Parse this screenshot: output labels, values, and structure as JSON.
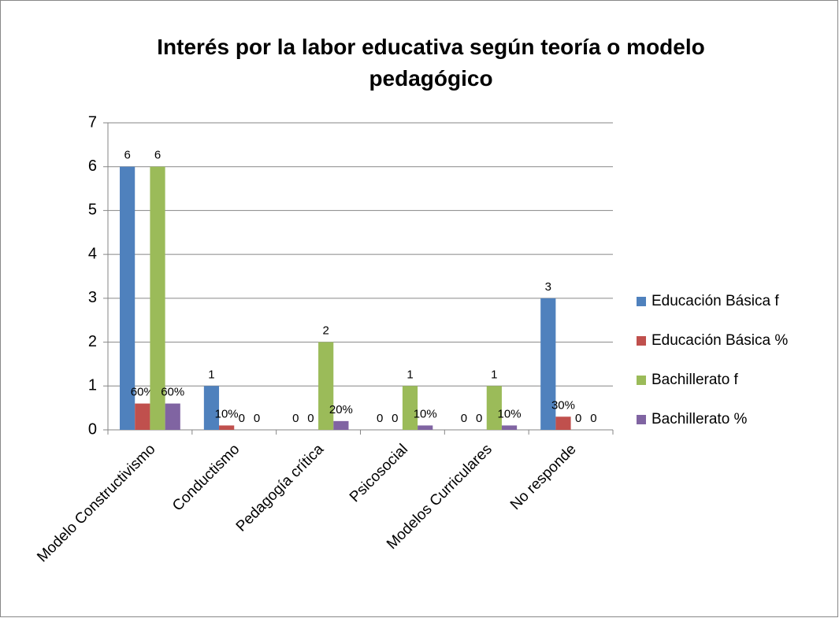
{
  "chart_data": {
    "type": "bar",
    "title": "Interés por la labor educativa según teoría o modelo pedagógico",
    "categories": [
      "Modelo Constructivismo",
      "Conductismo",
      "Pedagogía crítica",
      "Psicosocial",
      "Modelos Curriculares",
      "No responde"
    ],
    "series": [
      {
        "name": "Educación Básica f",
        "color": "#4f81bd",
        "values": [
          6,
          1,
          0,
          0,
          0,
          3
        ]
      },
      {
        "name": "Educación Básica %",
        "color": "#c0504d",
        "values": [
          0.6,
          0.1,
          0,
          0,
          0,
          0.3
        ],
        "value_labels": [
          "60%",
          "10%",
          "0",
          "0",
          "0",
          "30%"
        ]
      },
      {
        "name": "Bachillerato f",
        "color": "#9bbb59",
        "values": [
          6,
          0,
          2,
          1,
          1,
          0
        ]
      },
      {
        "name": "Bachillerato %",
        "color": "#8064a2",
        "values": [
          0.6,
          0,
          0.2,
          0.1,
          0.1,
          0
        ],
        "value_labels": [
          "60%",
          "0",
          "20%",
          "10%",
          "10%",
          "0"
        ]
      }
    ],
    "ylim": [
      0,
      7
    ],
    "yticks": [
      0,
      1,
      2,
      3,
      4,
      5,
      6,
      7
    ],
    "grid": true,
    "legend": "right"
  }
}
